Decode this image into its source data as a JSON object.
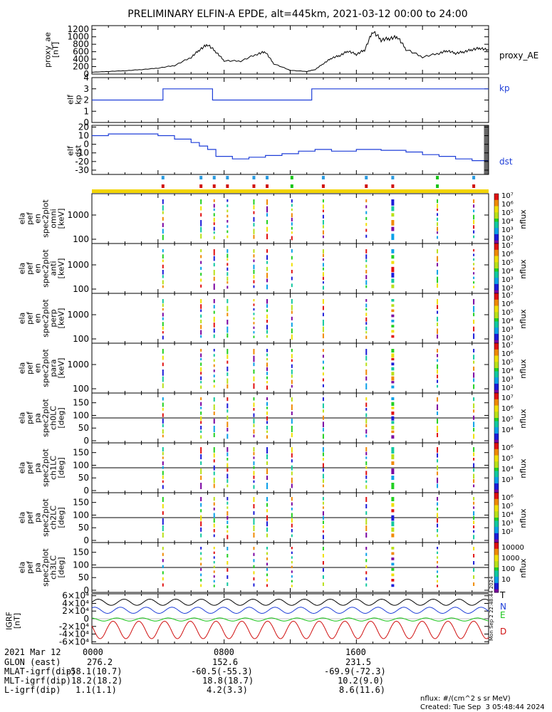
{
  "title": "PRELIMINARY ELFIN-A EPDE, alt=445km, 2021-03-12 00:00 to 24:00",
  "colors": {
    "series_blue": "#1f3fd8",
    "trace_black": "#000000",
    "green": "#17c417",
    "red": "#d01010",
    "status_bar": "#f2d400"
  },
  "panels": {
    "proxy_ae": {
      "ylabel": [
        "proxy_ae",
        "[nT]"
      ],
      "right_label": "proxy_AE",
      "yticks": [
        "1200",
        "1000",
        "800",
        "600",
        "400",
        "200",
        "0"
      ]
    },
    "kp": {
      "ylabel": [
        "elf",
        "kp"
      ],
      "right_label": "kp",
      "yticks": [
        "4",
        "3",
        "2",
        "1",
        "0"
      ]
    },
    "dst": {
      "ylabel": [
        "elf",
        "dst"
      ],
      "right_label": "dst",
      "yticks": [
        "20",
        "10",
        "0",
        "-10",
        "-20",
        "-30"
      ]
    },
    "energy_spectra": [
      {
        "ylabel": [
          "ela",
          "pef",
          "en",
          "spec2plot",
          "omni",
          "[keV]"
        ],
        "yticks": [
          "1000",
          "100"
        ]
      },
      {
        "ylabel": [
          "ela",
          "pef",
          "en",
          "spec2plot",
          "anti",
          "[keV]"
        ],
        "yticks": [
          "1000",
          "100"
        ]
      },
      {
        "ylabel": [
          "ela",
          "pef",
          "en",
          "spec2plot",
          "perp",
          "[keV]"
        ],
        "yticks": [
          "1000",
          "100"
        ]
      },
      {
        "ylabel": [
          "ela",
          "pef",
          "en",
          "spec2plot",
          "para",
          "[keV]"
        ],
        "yticks": [
          "1000",
          "100"
        ]
      }
    ],
    "pitch_spectra": [
      {
        "ylabel": [
          "ela",
          "pef",
          "pa",
          "spec2plot",
          "ch0LC",
          "[deg]"
        ],
        "yticks": [
          "150",
          "100",
          "50",
          "0"
        ]
      },
      {
        "ylabel": [
          "ela",
          "pef",
          "pa",
          "spec2plot",
          "ch1LC",
          "[deg]"
        ],
        "yticks": [
          "150",
          "100",
          "50",
          "0"
        ]
      },
      {
        "ylabel": [
          "ela",
          "pef",
          "pa",
          "spec2plot",
          "ch2LC",
          "[deg]"
        ],
        "yticks": [
          "150",
          "100",
          "50",
          "0"
        ]
      },
      {
        "ylabel": [
          "ela",
          "pef",
          "pa",
          "spec2plot",
          "ch3LC",
          "[deg]"
        ],
        "yticks": [
          "150",
          "100",
          "50",
          "0"
        ]
      }
    ],
    "igrf": {
      "ylabel": [
        "IGRF",
        "[nT]"
      ],
      "yticks": [
        "6×10⁴",
        "4×10⁴",
        "2×10⁴",
        "0",
        "-2×10⁴",
        "-4×10⁴",
        "-6×10⁴"
      ],
      "legend": [
        "T",
        "N",
        "E",
        "D"
      ]
    }
  },
  "colorbars": {
    "unit_label": "nflux",
    "energy_ticks": [
      "10⁷",
      "10⁶",
      "10⁵",
      "10⁴",
      "10³",
      "10²"
    ],
    "pitch_ticks": [
      [
        "10⁷",
        "10⁶",
        "10⁵",
        "10⁴"
      ],
      [
        "10⁶",
        "10⁵",
        "10⁴",
        "10³"
      ],
      [
        "10⁶",
        "10⁵",
        "10⁴",
        "10³",
        "10²"
      ],
      [
        "10000",
        "1000",
        "100",
        "10"
      ]
    ]
  },
  "ephemeris": {
    "rows": [
      [
        "2021 Mar 12",
        "0000",
        "0800",
        "1600"
      ],
      [
        "GLON (east)",
        "276.2",
        "152.6",
        "231.5"
      ],
      [
        "MLAT-igrf(dip)",
        "-58.1(10.7)",
        "-60.5(-55.3)",
        "-69.9(-72.3)"
      ],
      [
        "MLT-igrf(dip)",
        "18.2(18.2)",
        "18.8(18.7)",
        "10.2(9.0)"
      ],
      [
        "L-igrf(dip)",
        "1.1(1.1)",
        "4.2(3.3)",
        "8.6(11.6)"
      ]
    ]
  },
  "footer": {
    "units": "nflux: #/(cm^2 s sr MeV)",
    "created": "Created: Tue Sep  3 05:48:44 2024",
    "side_stamp": "Mon Sep  2 22:48:44 2024"
  },
  "chart_data": {
    "type": "line",
    "x_range_hours": [
      0,
      24
    ],
    "x_ticks": [
      "0000",
      "0800",
      "1600"
    ],
    "science_zones_hours": [
      4.3,
      6.6,
      7.4,
      8.2,
      9.8,
      10.6,
      12.1,
      14.0,
      16.6,
      18.2,
      20.9,
      23.1
    ],
    "proxy_ae": {
      "ylim": [
        0,
        1300
      ],
      "x": [
        0,
        1,
        2,
        3,
        4,
        5,
        6,
        6.5,
        7,
        7.5,
        8,
        9,
        10,
        10.5,
        11,
        12,
        13,
        13.5,
        14,
        14.5,
        15,
        15.5,
        16,
        16.5,
        17,
        17.5,
        18,
        18.5,
        19,
        20,
        21,
        21.5,
        22,
        22.5,
        23,
        23.5,
        24
      ],
      "values": [
        50,
        70,
        90,
        120,
        160,
        230,
        450,
        650,
        800,
        600,
        360,
        350,
        540,
        600,
        280,
        100,
        70,
        120,
        280,
        430,
        500,
        620,
        530,
        650,
        1160,
        920,
        960,
        1000,
        670,
        460,
        560,
        630,
        560,
        600,
        660,
        700,
        640
      ]
    },
    "kp": {
      "ylim": [
        0,
        4
      ],
      "x": [
        0,
        4.3,
        4.3,
        7.3,
        7.3,
        13.3,
        13.3,
        24
      ],
      "values": [
        2,
        2,
        3,
        3,
        2,
        2,
        3,
        3
      ]
    },
    "dst": {
      "ylim": [
        -35,
        22
      ],
      "x": [
        0,
        1,
        1,
        4,
        4,
        5,
        5,
        6,
        6,
        6.5,
        6.5,
        7,
        7,
        7.5,
        7.5,
        8.5,
        8.5,
        9.5,
        9.5,
        10.5,
        10.5,
        11.5,
        11.5,
        12.5,
        12.5,
        13.5,
        13.5,
        14.5,
        14.5,
        16,
        16,
        17.5,
        17.5,
        19,
        19,
        20,
        20,
        21,
        21,
        22,
        22,
        23,
        23,
        24
      ],
      "values": [
        10,
        10,
        12,
        12,
        10,
        10,
        6,
        6,
        2,
        2,
        -2,
        -2,
        -6,
        -6,
        -14,
        -14,
        -17,
        -17,
        -15,
        -15,
        -13,
        -13,
        -11,
        -11,
        -8,
        -8,
        -6,
        -6,
        -8,
        -8,
        -6,
        -6,
        -7,
        -7,
        -9,
        -9,
        -12,
        -12,
        -14,
        -14,
        -17,
        -17,
        -19,
        -19
      ]
    },
    "igrf": {
      "ylim": [
        -65000,
        65000
      ],
      "series": [
        {
          "name": "T",
          "mean": 43000,
          "amp": 8000
        },
        {
          "name": "N",
          "mean": 22000,
          "amp": 8000
        },
        {
          "name": "E",
          "mean": -2000,
          "amp": 4000
        },
        {
          "name": "D",
          "mean": -28000,
          "amp": 24000
        }
      ]
    }
  }
}
